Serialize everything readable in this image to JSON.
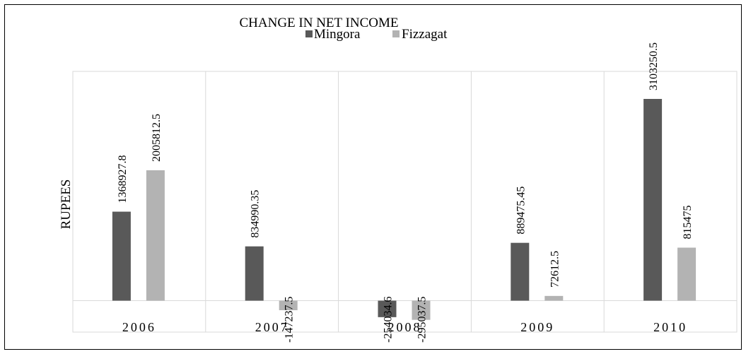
{
  "chart_data": {
    "type": "bar",
    "title": "CHANGE IN NET INCOME",
    "ylabel": "RUPEES",
    "xlabel": "",
    "categories": [
      "2006",
      "2007",
      "2008",
      "2009",
      "2010"
    ],
    "series": [
      {
        "name": "Mingora",
        "color": "#595959",
        "values": [
          1368927.8,
          834990.35,
          -254034.6,
          889475.45,
          3103250.5
        ],
        "labels": [
          "1368927.8",
          "834990.35",
          "-254034.6",
          "889475.45",
          "3103250.5"
        ]
      },
      {
        "name": "Fizzagat",
        "color": "#b3b3b3",
        "values": [
          2005812.5,
          -147237.5,
          -295037.5,
          72612.5,
          815475
        ],
        "labels": [
          "2005812.5",
          "-147237.5",
          "-295037.5",
          "72612.5",
          "815475"
        ]
      }
    ],
    "ylim": [
      -600000,
      3500000
    ],
    "grid": "vertical",
    "legend_position": "top-center",
    "data_labels": "rotated-vertical"
  }
}
